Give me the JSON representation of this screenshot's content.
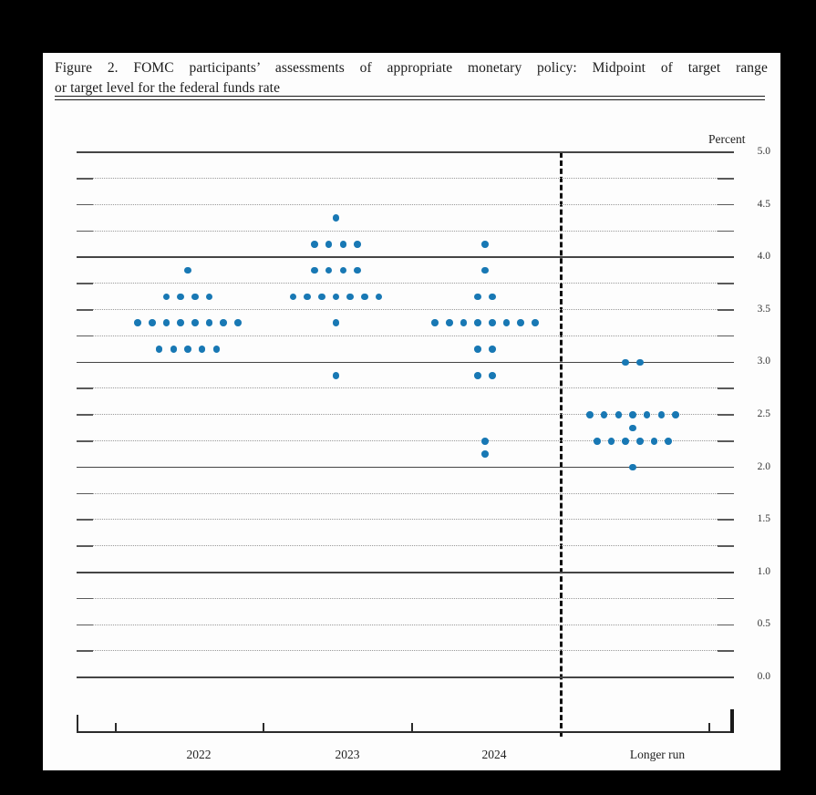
{
  "page": {
    "title_line1": "Figure 2.  FOMC participants’ assessments of appropriate monetary policy:  Midpoint of target range",
    "title_line2": "or target level for the federal funds rate"
  },
  "chart_data": {
    "type": "scatter",
    "title": "FOMC participants' assessments of appropriate monetary policy: Midpoint of target range or target level for the federal funds rate",
    "ylabel": "Percent",
    "ylim": [
      0.0,
      5.0
    ],
    "y_tick_step": 0.5,
    "y_tick_labels": [
      "5.0",
      "4.5",
      "4.0",
      "3.5",
      "3.0",
      "2.5",
      "2.0",
      "1.5",
      "1.0",
      "0.5",
      "0.0"
    ],
    "gridlines": "every 0.25 percent; solid at whole percents, dotted at quarter percents",
    "legend_position": "none",
    "categories": [
      "2022",
      "2023",
      "2024",
      "Longer run"
    ],
    "separator": "dashed vertical line between 2024 and Longer run",
    "series": [
      {
        "name": "2022",
        "dots": [
          {
            "value": 3.875,
            "count": 1
          },
          {
            "value": 3.625,
            "count": 4
          },
          {
            "value": 3.375,
            "count": 8
          },
          {
            "value": 3.125,
            "count": 5
          }
        ]
      },
      {
        "name": "2023",
        "dots": [
          {
            "value": 4.375,
            "count": 1
          },
          {
            "value": 4.125,
            "count": 4
          },
          {
            "value": 3.875,
            "count": 4
          },
          {
            "value": 3.625,
            "count": 7
          },
          {
            "value": 3.375,
            "count": 1
          },
          {
            "value": 2.875,
            "count": 1
          }
        ]
      },
      {
        "name": "2024",
        "dots": [
          {
            "value": 4.125,
            "count": 1
          },
          {
            "value": 3.875,
            "count": 1
          },
          {
            "value": 3.625,
            "count": 2
          },
          {
            "value": 3.375,
            "count": 8
          },
          {
            "value": 3.125,
            "count": 2
          },
          {
            "value": 2.875,
            "count": 2
          },
          {
            "value": 2.25,
            "count": 1
          },
          {
            "value": 2.125,
            "count": 1
          }
        ]
      },
      {
        "name": "Longer run",
        "dots": [
          {
            "value": 3.0,
            "count": 2
          },
          {
            "value": 2.5,
            "count": 7
          },
          {
            "value": 2.375,
            "count": 1
          },
          {
            "value": 2.25,
            "count": 6
          },
          {
            "value": 2.0,
            "count": 1
          }
        ]
      }
    ],
    "colors": {
      "dot": "#1878b4",
      "solid_grid": "#454545",
      "dotted_grid": "#9a9a9a"
    }
  }
}
